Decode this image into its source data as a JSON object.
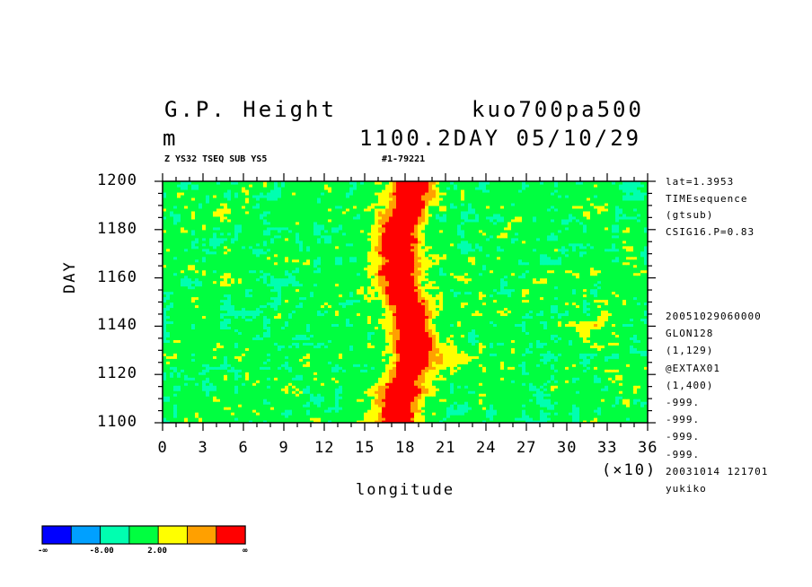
{
  "header": {
    "title_left": "G.P. Height",
    "title_right": "kuo700pa500",
    "units": "m",
    "time_label": "1100.2DAY 05/10/29",
    "sub_left": "Z YS32 TSEQ SUB YS5",
    "sub_right": "#1-79221"
  },
  "side_info": {
    "top": [
      "lat=1.3953",
      "TIMEsequence",
      "(gtsub)",
      "CSIG16.P=0.83"
    ],
    "bottom": [
      "20051029060000",
      "GLON128",
      "(1,129)",
      "@EXTAX01",
      "(1,400)",
      "-999.",
      "-999.",
      "-999.",
      "-999.",
      "20031014 121701",
      "yukiko"
    ]
  },
  "colorbar": {
    "colors": [
      "#0000ff",
      "#00a0ff",
      "#00ffb0",
      "#00ff40",
      "#ffff00",
      "#ffa000",
      "#ff0000"
    ],
    "labels": [
      "-∞",
      "-8.00",
      "2.00",
      "∞"
    ]
  },
  "chart_data": {
    "type": "heatmap",
    "title": "G.P. Height",
    "xlabel": "longitude",
    "ylabel": "DAY",
    "x_multiplier_label": "(×10)",
    "xlim": [
      0,
      36
    ],
    "ylim": [
      1100,
      1200
    ],
    "x_ticks": [
      "0",
      "3",
      "6",
      "9",
      "12",
      "15",
      "18",
      "21",
      "24",
      "27",
      "30",
      "33",
      "36"
    ],
    "y_ticks": [
      "1100",
      "1120",
      "1140",
      "1160",
      "1180",
      "1200"
    ],
    "description_levels": [
      "-∞",
      "-8.00",
      "2.00",
      "∞"
    ],
    "dominant_features": [
      {
        "name": "band",
        "x_center": 18,
        "x_halfwidth": 1.2,
        "value_level": "highest"
      }
    ]
  }
}
